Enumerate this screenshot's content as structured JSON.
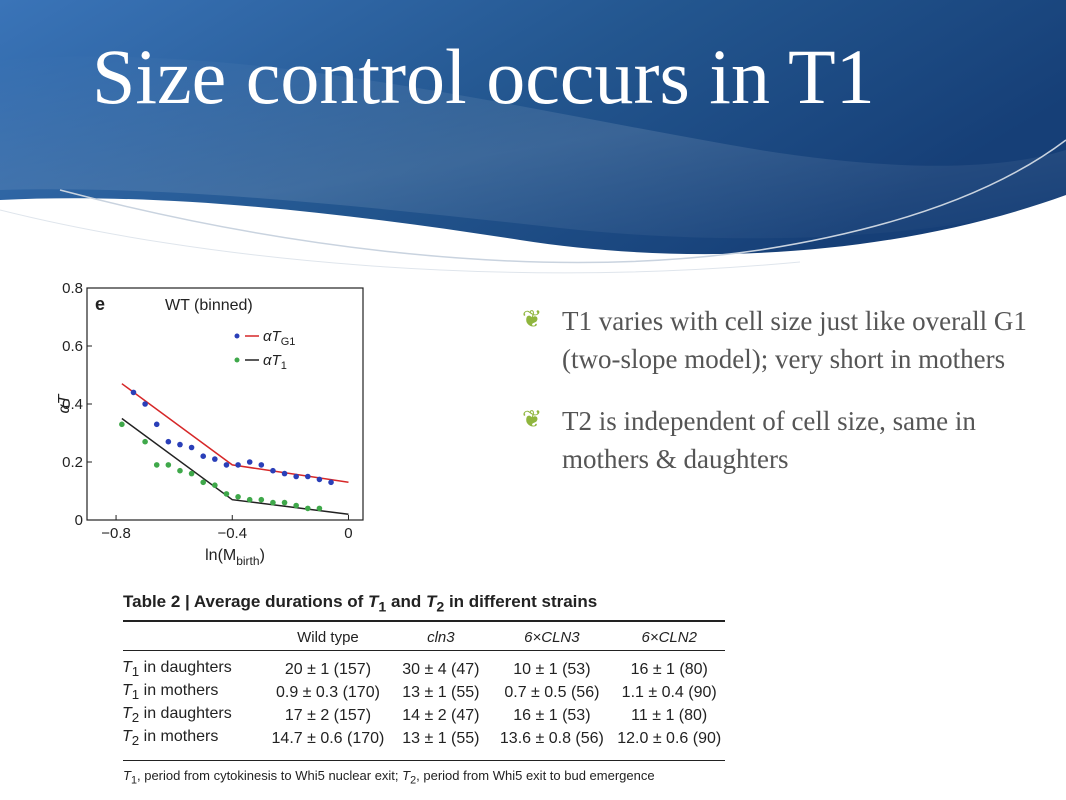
{
  "slide": {
    "title": "Size control occurs in T1",
    "bullets": [
      "T1 varies with cell size just like overall G1 (two-slope model); very short in mothers",
      "T2 is independent of cell size, same in mothers & daughters"
    ],
    "bullet_icon": "flourish-bullet-icon",
    "colors": {
      "header_blue": "#1d4e8f",
      "header_light": "#3a74b8",
      "bullet_green": "#8fb53d",
      "text_gray": "#555555"
    }
  },
  "chart_data": {
    "type": "scatter",
    "panel_label": "e",
    "title": "WT (binned)",
    "xlabel_main": "ln(M",
    "xlabel_sub": "birth",
    "xlabel_end": ")",
    "ylabel": "αT",
    "xlim": [
      -0.9,
      0.05
    ],
    "ylim": [
      0,
      0.8
    ],
    "x_ticks": [
      "−0.8",
      "−0.4",
      "0"
    ],
    "x_tick_values": [
      -0.8,
      -0.4,
      0
    ],
    "y_ticks": [
      "0",
      "0.2",
      "0.4",
      "0.6",
      "0.8"
    ],
    "y_tick_values": [
      0,
      0.2,
      0.4,
      0.6,
      0.8
    ],
    "legend": [
      {
        "label_main": "αT",
        "label_sub": "G1",
        "color": "#d62728"
      },
      {
        "label_main": "αT",
        "label_sub": "1",
        "color": "#222222"
      }
    ],
    "series": [
      {
        "name": "αT_G1",
        "marker_color": "#2a3fb8",
        "line_color": "#d62728",
        "points": [
          [
            -0.74,
            0.44
          ],
          [
            -0.7,
            0.4
          ],
          [
            -0.66,
            0.33
          ],
          [
            -0.62,
            0.27
          ],
          [
            -0.58,
            0.26
          ],
          [
            -0.54,
            0.25
          ],
          [
            -0.5,
            0.22
          ],
          [
            -0.46,
            0.21
          ],
          [
            -0.42,
            0.19
          ],
          [
            -0.38,
            0.19
          ],
          [
            -0.34,
            0.2
          ],
          [
            -0.3,
            0.19
          ],
          [
            -0.26,
            0.17
          ],
          [
            -0.22,
            0.16
          ],
          [
            -0.18,
            0.15
          ],
          [
            -0.14,
            0.15
          ],
          [
            -0.1,
            0.14
          ],
          [
            -0.06,
            0.13
          ]
        ],
        "fit": [
          [
            -0.78,
            0.47
          ],
          [
            -0.4,
            0.19
          ],
          [
            0,
            0.13
          ]
        ]
      },
      {
        "name": "αT_1",
        "marker_color": "#3fa84a",
        "line_color": "#222222",
        "points": [
          [
            -0.78,
            0.33
          ],
          [
            -0.7,
            0.27
          ],
          [
            -0.66,
            0.19
          ],
          [
            -0.62,
            0.19
          ],
          [
            -0.58,
            0.17
          ],
          [
            -0.54,
            0.16
          ],
          [
            -0.5,
            0.13
          ],
          [
            -0.46,
            0.12
          ],
          [
            -0.42,
            0.09
          ],
          [
            -0.38,
            0.08
          ],
          [
            -0.34,
            0.07
          ],
          [
            -0.3,
            0.07
          ],
          [
            -0.26,
            0.06
          ],
          [
            -0.22,
            0.06
          ],
          [
            -0.18,
            0.05
          ],
          [
            -0.14,
            0.04
          ],
          [
            -0.1,
            0.04
          ]
        ],
        "fit": [
          [
            -0.78,
            0.35
          ],
          [
            -0.4,
            0.07
          ],
          [
            0,
            0.02
          ]
        ]
      }
    ]
  },
  "table": {
    "caption_prefix": "Table 2 | Average durations of ",
    "caption_t1": "T",
    "caption_t1_sub": "1",
    "caption_and": " and ",
    "caption_t2": "T",
    "caption_t2_sub": "2",
    "caption_suffix": " in different strains",
    "headers": [
      "",
      "Wild type",
      "cln3",
      "6×CLN3",
      "6×CLN2"
    ],
    "rows": [
      {
        "label_t": "T",
        "label_sub": "1",
        "label_rest": " in daughters",
        "cells": [
          "20 ± 1 (157)",
          "30 ± 4 (47)",
          "10 ± 1 (53)",
          "16 ± 1 (80)"
        ]
      },
      {
        "label_t": "T",
        "label_sub": "1",
        "label_rest": " in mothers",
        "cells": [
          "0.9 ± 0.3 (170)",
          "13 ± 1 (55)",
          "0.7 ± 0.5 (56)",
          "1.1 ± 0.4 (90)"
        ]
      },
      {
        "label_t": "T",
        "label_sub": "2",
        "label_rest": " in daughters",
        "cells": [
          "17 ± 2 (157)",
          "14 ± 2 (47)",
          "16 ± 1 (53)",
          "11 ± 1 (80)"
        ]
      },
      {
        "label_t": "T",
        "label_sub": "2",
        "label_rest": " in mothers",
        "cells": [
          "14.7 ± 0.6 (170)",
          "13 ± 1 (55)",
          "13.6 ± 0.8 (56)",
          "12.0 ± 0.6 (90)"
        ]
      }
    ],
    "footnote_t1": "T",
    "footnote_t1_sub": "1",
    "footnote_a": ", period from cytokinesis to Whi5 nuclear exit; ",
    "footnote_t2": "T",
    "footnote_t2_sub": "2",
    "footnote_b": ", period from Whi5 exit to bud emergence"
  }
}
